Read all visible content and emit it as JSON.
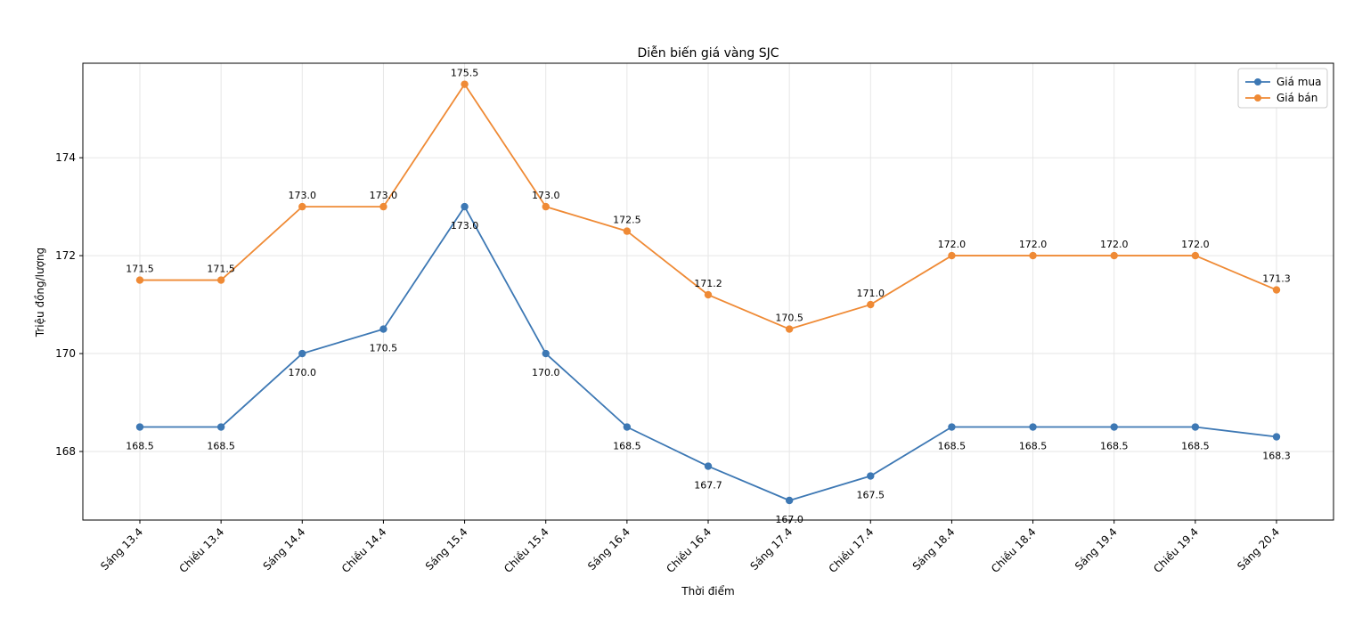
{
  "chart_data": {
    "type": "line",
    "title": "Diễn biến giá vàng SJC",
    "xlabel": "Thời điểm",
    "ylabel": "Triệu đồng/lượng",
    "categories": [
      "Sáng 13.4",
      "Chiều 13.4",
      "Sáng 14.4",
      "Chiều 14.4",
      "Sáng 15.4",
      "Chiều 15.4",
      "Sáng 16.4",
      "Chiều 16.4",
      "Sáng 17.4",
      "Chiều 17.4",
      "Sáng 18.4",
      "Chiều 18.4",
      "Sáng 19.4",
      "Chiều 19.4",
      "Sáng 20.4"
    ],
    "series": [
      {
        "name": "Giá mua",
        "color": "#3d78b4",
        "values": [
          168.5,
          168.5,
          170.0,
          170.5,
          173.0,
          170.0,
          168.5,
          167.7,
          167.0,
          167.5,
          168.5,
          168.5,
          168.5,
          168.5,
          168.3
        ],
        "label_position": "below"
      },
      {
        "name": "Giá bán",
        "color": "#ef8a35",
        "values": [
          171.5,
          171.5,
          173.0,
          173.0,
          175.5,
          173.0,
          172.5,
          171.2,
          170.5,
          171.0,
          172.0,
          172.0,
          172.0,
          172.0,
          171.3
        ],
        "label_position": "above"
      }
    ],
    "yticks": [
      168,
      170,
      172,
      174
    ],
    "ylim": [
      166.6,
      175.93
    ],
    "grid": true,
    "legend": "top-right"
  }
}
